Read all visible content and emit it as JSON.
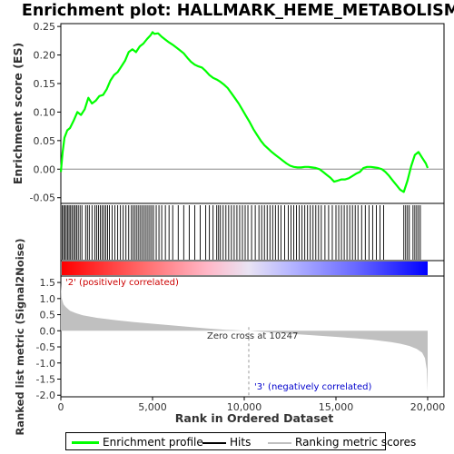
{
  "chart_data": {
    "type": "line",
    "title": "Enrichment plot: HALLMARK_HEME_METABOLISM",
    "top_panel": {
      "ylabel": "Enrichment score (ES)",
      "ylim": [
        -0.06,
        0.255
      ],
      "yticks": [
        "0.25",
        "0.20",
        "0.15",
        "0.10",
        "0.05",
        "0.00",
        "-0.05"
      ],
      "ytick_values": [
        0.25,
        0.2,
        0.15,
        0.1,
        0.05,
        0.0,
        -0.05
      ],
      "series": [
        {
          "name": "Enrichment profile",
          "color": "#00ff00",
          "x": [
            0,
            100,
            200,
            350,
            500,
            700,
            900,
            1100,
            1300,
            1500,
            1700,
            1900,
            2100,
            2300,
            2500,
            2700,
            2900,
            3100,
            3300,
            3500,
            3700,
            3900,
            4100,
            4300,
            4500,
            4700,
            4900,
            5000,
            5100,
            5300,
            5500,
            5700,
            5900,
            6100,
            6300,
            6500,
            6700,
            6900,
            7100,
            7300,
            7500,
            7700,
            7900,
            8100,
            8300,
            8500,
            8700,
            8900,
            9100,
            9300,
            9500,
            9700,
            9900,
            10100,
            10300,
            10500,
            10700,
            10900,
            11100,
            11300,
            11500,
            11700,
            11900,
            12100,
            12300,
            12500,
            12700,
            12900,
            13100,
            13300,
            13500,
            13700,
            13900,
            14100,
            14300,
            14500,
            14700,
            14900,
            15100,
            15300,
            15500,
            15700,
            15900,
            16100,
            16300,
            16500,
            16700,
            16900,
            17100,
            17300,
            17500,
            17700,
            17900,
            18100,
            18300,
            18500,
            18700,
            18900,
            19100,
            19300,
            19500,
            19700,
            19900,
            20000
          ],
          "y": [
            -0.005,
            0.03,
            0.055,
            0.068,
            0.072,
            0.085,
            0.1,
            0.095,
            0.105,
            0.125,
            0.115,
            0.12,
            0.128,
            0.13,
            0.14,
            0.155,
            0.165,
            0.17,
            0.18,
            0.19,
            0.205,
            0.21,
            0.205,
            0.215,
            0.22,
            0.228,
            0.235,
            0.24,
            0.237,
            0.238,
            0.232,
            0.227,
            0.222,
            0.218,
            0.213,
            0.208,
            0.203,
            0.195,
            0.188,
            0.183,
            0.18,
            0.178,
            0.172,
            0.165,
            0.16,
            0.157,
            0.153,
            0.148,
            0.142,
            0.133,
            0.124,
            0.115,
            0.104,
            0.093,
            0.082,
            0.07,
            0.06,
            0.05,
            0.042,
            0.036,
            0.03,
            0.025,
            0.02,
            0.015,
            0.01,
            0.006,
            0.004,
            0.003,
            0.003,
            0.004,
            0.004,
            0.003,
            0.002,
            0.0,
            -0.005,
            -0.01,
            -0.015,
            -0.022,
            -0.02,
            -0.018,
            -0.018,
            -0.016,
            -0.012,
            -0.008,
            -0.005,
            0.002,
            0.004,
            0.004,
            0.003,
            0.002,
            0.0,
            -0.005,
            -0.012,
            -0.02,
            -0.028,
            -0.036,
            -0.04,
            -0.02,
            0.005,
            0.025,
            0.03,
            0.02,
            0.01,
            0.002
          ]
        }
      ]
    },
    "hits_panel": {
      "label": "Hits",
      "hit_positions": [
        80,
        150,
        220,
        300,
        380,
        450,
        530,
        610,
        700,
        780,
        860,
        950,
        1050,
        1150,
        1350,
        1450,
        1550,
        1700,
        1850,
        1950,
        2050,
        2150,
        2250,
        2350,
        2450,
        2550,
        2650,
        2800,
        2950,
        3100,
        3250,
        3400,
        3550,
        3700,
        3850,
        3950,
        4050,
        4150,
        4250,
        4350,
        4450,
        4550,
        4650,
        4750,
        4850,
        4950,
        5050,
        5200,
        5350,
        5500,
        5700,
        5900,
        6100,
        6400,
        6700,
        7000,
        7300,
        7600,
        7900,
        8100,
        8300,
        8500,
        8600,
        8700,
        8850,
        9000,
        9150,
        9300,
        9450,
        9600,
        9750,
        9900,
        10050,
        10200,
        10400,
        10600,
        10800,
        10950,
        11100,
        11250,
        11400,
        11550,
        11700,
        11850,
        12000,
        12200,
        12400,
        12550,
        12700,
        12850,
        13000,
        13150,
        13300,
        13450,
        13600,
        13750,
        13900,
        14050,
        14200,
        14400,
        14600,
        14800,
        15000,
        15150,
        15300,
        15450,
        15600,
        15750,
        15900,
        16050,
        16200,
        16400,
        16600,
        16800,
        17000,
        17200,
        17400,
        17600,
        18700,
        18800,
        18900,
        19000,
        19200,
        19300,
        19400,
        19500,
        19600
      ]
    },
    "metric_panel": {
      "ylabel": "Ranked list metric (Signal2Noise)",
      "xlabel": "Rank in Ordered Dataset",
      "ylim": [
        -2.05,
        1.7
      ],
      "yticks": [
        "1.5",
        "1.0",
        "0.5",
        "0.0",
        "-0.5",
        "-1.0",
        "-1.5",
        "-2.0"
      ],
      "ytick_values": [
        1.5,
        1.0,
        0.5,
        0.0,
        -0.5,
        -1.0,
        -1.5,
        -2.0
      ],
      "xlim": [
        0,
        20000
      ],
      "xticks": [
        "0",
        "5,000",
        "10,000",
        "15,000",
        "20,000"
      ],
      "xtick_values": [
        0,
        5000,
        10000,
        15000,
        20000
      ],
      "metric_x": [
        0,
        50,
        150,
        300,
        500,
        800,
        1200,
        2000,
        3000,
        4000,
        5000,
        6000,
        7000,
        8000,
        9000,
        10000,
        10247,
        11000,
        12000,
        13000,
        14000,
        15000,
        16000,
        17000,
        18000,
        18500,
        19000,
        19400,
        19700,
        19850,
        19950,
        20000
      ],
      "metric_y": [
        1.45,
        1.0,
        0.82,
        0.72,
        0.62,
        0.55,
        0.48,
        0.4,
        0.33,
        0.27,
        0.22,
        0.17,
        0.12,
        0.07,
        0.03,
        0.005,
        0.0,
        -0.03,
        -0.07,
        -0.11,
        -0.15,
        -0.19,
        -0.23,
        -0.28,
        -0.35,
        -0.4,
        -0.47,
        -0.56,
        -0.68,
        -0.85,
        -1.2,
        -1.9
      ],
      "annotations": {
        "zero_cross": "Zero cross at 10247",
        "positive": "'2' (positively correlated)",
        "negative": "'3' (negatively correlated)"
      },
      "zero_cross_x": 10247
    },
    "legend": [
      {
        "label": "Enrichment profile",
        "color": "#00ff00"
      },
      {
        "label": "Hits",
        "color": "#000000"
      },
      {
        "label": "Ranking metric scores",
        "color": "#c0c0c0"
      }
    ],
    "colors": {
      "profile": "#00ff00",
      "metric": "#c0c0c0",
      "positive_text": "#cc0000",
      "negative_text": "#0000cc",
      "gradient_red": "#ff0000",
      "gradient_blue": "#0000ff"
    }
  }
}
